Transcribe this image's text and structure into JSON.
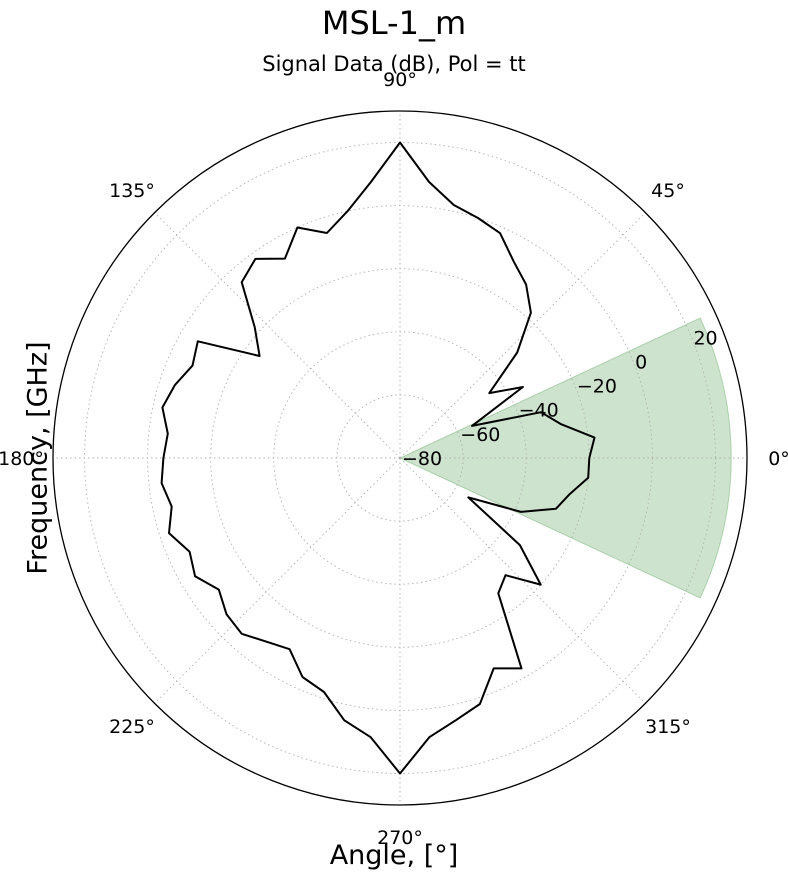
{
  "title": "MSL-1_m",
  "subtitle": "Signal Data (dB), Pol = tt",
  "xlabel": "Angle, [$^\\circ$]",
  "xlabel_display": "Angle, [°]",
  "ylabel": "Frequency, [GHz]",
  "chart_data": {
    "type": "polar-line",
    "title": "Signal Data (dB), Pol = tt",
    "theta_unit": "degrees",
    "r_unit": "dB",
    "rlim": [
      -80,
      30
    ],
    "r_ticks": [
      -80,
      -60,
      -40,
      -20,
      0,
      20
    ],
    "r_tick_labels": [
      "−80",
      "−60",
      "−40",
      "−20",
      "0",
      "20"
    ],
    "theta_ticks": [
      0,
      45,
      90,
      135,
      180,
      225,
      270,
      315
    ],
    "theta_tick_labels": [
      "0°",
      "45°",
      "90°",
      "135°",
      "180°",
      "225°",
      "270°",
      "315°"
    ],
    "grid": true,
    "line_color": "#000000",
    "highlight": {
      "theta_start": -25,
      "theta_end": 25,
      "r_outer": 25,
      "color": "#2e8b2e"
    },
    "series": [
      {
        "theta": [
          0,
          6,
          12,
          18,
          24,
          30,
          36,
          42,
          48,
          54,
          60,
          66,
          72,
          78,
          84,
          90,
          96,
          102,
          108,
          114,
          120,
          126,
          132,
          138,
          144,
          150,
          156,
          162,
          168,
          174,
          180,
          186,
          192,
          198,
          204,
          210,
          216,
          222,
          228,
          234,
          240,
          246,
          252,
          258,
          264,
          270,
          276,
          282,
          288,
          294,
          300,
          306,
          312,
          318,
          324,
          330,
          336,
          342,
          348,
          354,
          360
        ],
        "r": [
          -20,
          -18,
          -28,
          -33,
          -55,
          -35,
          -45,
          -30,
          -18,
          -12,
          -8,
          -2,
          0,
          2,
          8,
          20,
          8,
          0,
          -5,
          0,
          -7,
          -2,
          -5,
          -18,
          -25,
          -6,
          -8,
          -5,
          -3,
          -6,
          -5,
          -4,
          -6,
          -3,
          -7,
          -5,
          -9,
          -6,
          -5,
          -8,
          -10,
          -4,
          -2,
          5,
          9,
          20,
          9,
          5,
          2,
          -7,
          -3,
          -27,
          -30,
          -20,
          -33,
          -55,
          -38,
          -28,
          -25,
          -20,
          -20
        ]
      }
    ]
  }
}
